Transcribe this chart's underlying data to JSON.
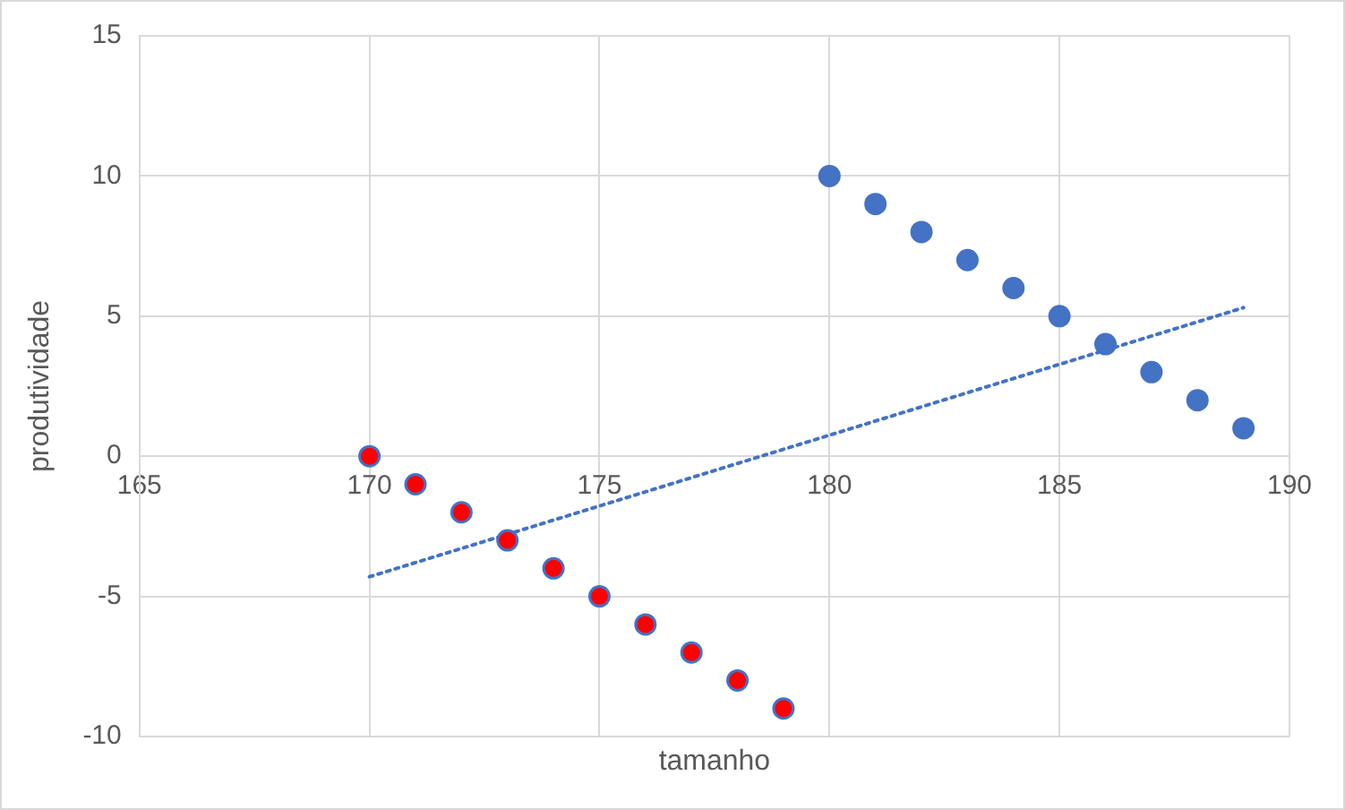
{
  "chart_data": {
    "type": "scatter",
    "xlabel": "tamanho",
    "ylabel": "produtividade",
    "xlim": [
      165,
      190
    ],
    "xticks": [
      165,
      170,
      175,
      180,
      185,
      190
    ],
    "ylim": [
      -10,
      15
    ],
    "yticks": [
      -10,
      -5,
      0,
      5,
      10,
      15
    ],
    "grid": true,
    "legend": false,
    "marker": "circle",
    "series": [
      {
        "color": "#ff0000",
        "x": [
          170,
          171,
          172,
          173,
          174,
          175,
          176,
          177,
          178,
          179
        ],
        "values": [
          0,
          -1,
          -2,
          -3,
          -4,
          -5,
          -6,
          -7,
          -8,
          -9
        ]
      },
      {
        "color": "#4472c4",
        "x": [
          180,
          181,
          182,
          183,
          184,
          185,
          186,
          187,
          188,
          189
        ],
        "values": [
          10,
          9,
          8,
          7,
          6,
          5,
          4,
          3,
          2,
          1
        ]
      },
      {
        "type": "line",
        "color": "#4472c4",
        "line_style": "dotted",
        "marker": "none",
        "x": [
          170,
          189
        ],
        "values": [
          -4.3,
          5.3
        ]
      }
    ]
  }
}
